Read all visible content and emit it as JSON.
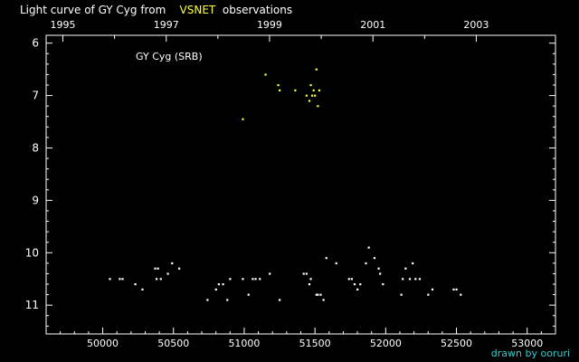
{
  "title_parts": {
    "before": "Light curve of GY Cyg from",
    "highlight": "VSNET",
    "after": "observations"
  },
  "credit": "drawn by ooruri",
  "chart_data": {
    "type": "scatter",
    "title": "Light curve of GY Cyg from VSNET observations",
    "annotation": "GY Cyg (SRB)",
    "xlabel": "",
    "ylabel": "",
    "xlim": [
      49600,
      53200
    ],
    "ylim": [
      11.55,
      5.85
    ],
    "y_inverted": true,
    "x_ticks": [
      50000,
      50500,
      51000,
      51500,
      52000,
      52500,
      53000
    ],
    "x_tick_labels": [
      "50000",
      "50500",
      "51000",
      "51500",
      "52000",
      "52500",
      "53000"
    ],
    "x_minor_step": 100,
    "top_axis_years": [
      {
        "label": "1995",
        "jd": 49718
      },
      {
        "label": "1997",
        "jd": 50449
      },
      {
        "label": "1999",
        "jd": 51179
      },
      {
        "label": "2001",
        "jd": 51910
      },
      {
        "label": "2003",
        "jd": 52640
      }
    ],
    "y_ticks": [
      6,
      7,
      8,
      9,
      10,
      11
    ],
    "y_tick_labels": [
      "6",
      "7",
      "8",
      "9",
      "10",
      "11"
    ],
    "y_minor_step": 0.2,
    "grid": false,
    "series": [
      {
        "color": "#ffffff",
        "points": [
          [
            50050,
            10.5
          ],
          [
            50120,
            10.5
          ],
          [
            50140,
            10.5
          ],
          [
            50230,
            10.6
          ],
          [
            50280,
            10.7
          ],
          [
            50370,
            10.3
          ],
          [
            50380,
            10.5
          ],
          [
            50390,
            10.3
          ],
          [
            50410,
            10.5
          ],
          [
            50460,
            10.4
          ],
          [
            50490,
            10.2
          ],
          [
            50540,
            10.3
          ],
          [
            50740,
            10.9
          ],
          [
            50800,
            10.7
          ],
          [
            50820,
            10.6
          ],
          [
            50850,
            10.6
          ],
          [
            50880,
            10.9
          ],
          [
            50900,
            10.5
          ],
          [
            50990,
            10.5
          ],
          [
            51030,
            10.8
          ],
          [
            51060,
            10.5
          ],
          [
            51080,
            10.5
          ],
          [
            51110,
            10.5
          ],
          [
            51180,
            10.4
          ],
          [
            51250,
            10.9
          ],
          [
            51420,
            10.4
          ],
          [
            51440,
            10.4
          ],
          [
            51460,
            10.6
          ],
          [
            51470,
            10.5
          ],
          [
            51510,
            10.8
          ],
          [
            51520,
            10.8
          ],
          [
            51540,
            10.8
          ],
          [
            51560,
            10.9
          ],
          [
            51580,
            10.1
          ],
          [
            51650,
            10.2
          ],
          [
            51740,
            10.5
          ],
          [
            51760,
            10.5
          ],
          [
            51780,
            10.6
          ],
          [
            51800,
            10.7
          ],
          [
            51820,
            10.6
          ],
          [
            51860,
            10.2
          ],
          [
            51880,
            9.9
          ],
          [
            51920,
            10.1
          ],
          [
            51950,
            10.3
          ],
          [
            51960,
            10.4
          ],
          [
            51980,
            10.6
          ],
          [
            52110,
            10.8
          ],
          [
            52120,
            10.5
          ],
          [
            52140,
            10.3
          ],
          [
            52170,
            10.5
          ],
          [
            52190,
            10.2
          ],
          [
            52210,
            10.5
          ],
          [
            52240,
            10.5
          ],
          [
            52300,
            10.8
          ],
          [
            52330,
            10.7
          ],
          [
            52480,
            10.7
          ],
          [
            52500,
            10.7
          ],
          [
            52530,
            10.8
          ]
        ]
      },
      {
        "color": "#ffff33",
        "points": [
          [
            50990,
            7.45
          ],
          [
            51150,
            6.6
          ],
          [
            51240,
            6.8
          ],
          [
            51250,
            6.9
          ],
          [
            51360,
            6.9
          ],
          [
            51440,
            7.0
          ],
          [
            51460,
            7.1
          ],
          [
            51470,
            6.8
          ],
          [
            51480,
            7.0
          ],
          [
            51490,
            6.9
          ],
          [
            51500,
            7.0
          ],
          [
            51510,
            6.5
          ],
          [
            51520,
            7.2
          ],
          [
            51530,
            6.9
          ]
        ]
      }
    ]
  }
}
